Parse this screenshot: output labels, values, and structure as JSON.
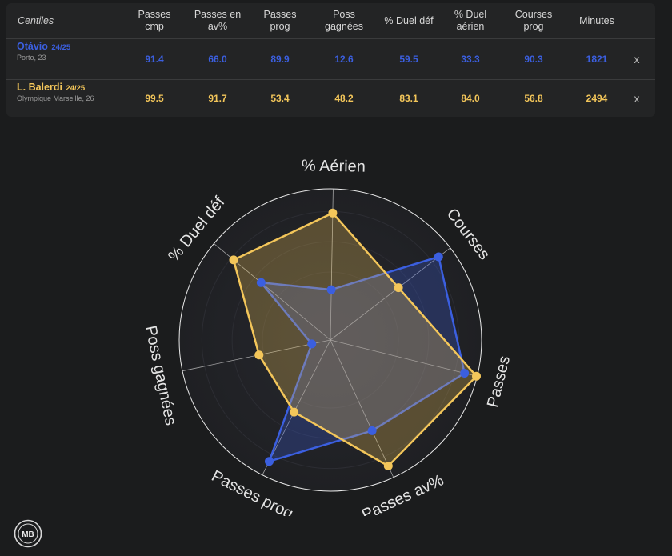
{
  "table": {
    "corner_label": "Centiles",
    "headers": [
      "Passes\ncmp",
      "Passes en\nav%",
      "Passes\nprog",
      "Poss\ngagnées",
      "% Duel déf",
      "% Duel\naérien",
      "Courses\nprog",
      "Minutes"
    ],
    "players": [
      {
        "name": "Otávio",
        "season": "24/25",
        "club": "Porto, 23",
        "values": [
          "91.4",
          "66.0",
          "89.9",
          "12.6",
          "59.5",
          "33.3",
          "90.3",
          "1821"
        ],
        "remove_label": "x",
        "color": "#3b5fe0"
      },
      {
        "name": "L. Balerdi",
        "season": "24/25",
        "club": "Olympique Marseille, 26",
        "values": [
          "99.5",
          "91.7",
          "53.4",
          "48.2",
          "83.1",
          "84.0",
          "56.8",
          "2494"
        ],
        "remove_label": "x",
        "color": "#f3c65a"
      }
    ]
  },
  "chart_data": {
    "type": "radar",
    "axes": [
      "Passes",
      "Passes av%",
      "Passes prog",
      "Poss gagnées",
      "% Duel déf",
      "% Aérien",
      "Courses"
    ],
    "range": [
      0,
      100
    ],
    "series": [
      {
        "name": "Otávio",
        "values": [
          91.4,
          66.0,
          89.9,
          12.6,
          59.5,
          33.3,
          90.3
        ],
        "color": "#3b5fe0"
      },
      {
        "name": "L. Balerdi",
        "values": [
          99.5,
          91.7,
          53.4,
          48.2,
          83.1,
          84.0,
          56.8
        ],
        "color": "#f3c65a"
      }
    ]
  },
  "logo_text": "MB"
}
